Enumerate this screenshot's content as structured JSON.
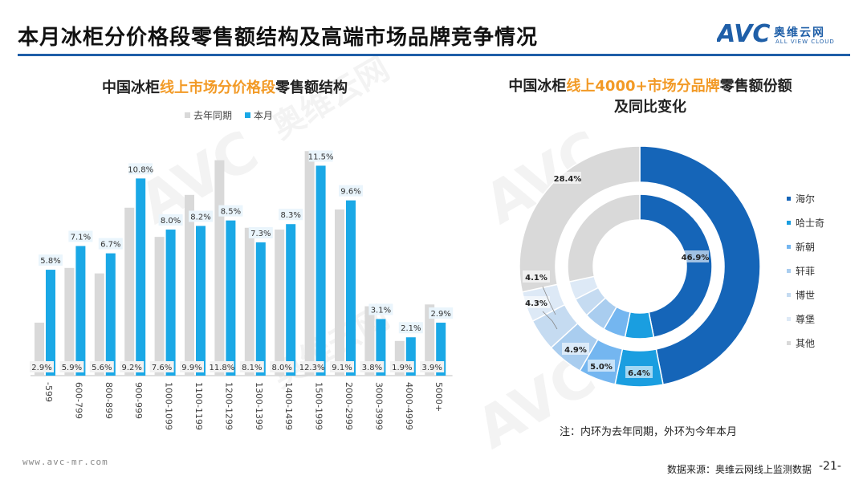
{
  "page": {
    "title": "本月冰柜分价格段零售额结构及高端市场品牌竞争情况",
    "logo_text": "奥维云网",
    "logo_sub": "ALL VIEW CLOUD",
    "site": "www.avc-mr.com",
    "source": "数据来源：奥维云网线上监测数据",
    "page_number": "-21-",
    "note": "注：内环为去年同期，外环为今年本月",
    "watermark": "AVC"
  },
  "colors": {
    "accent_blue": "#1f5fa8",
    "current_bar": "#1aa8e6",
    "prev_bar": "#d9d9d9",
    "highlight": "#f29a26"
  },
  "chart_data": [
    {
      "type": "bar",
      "title_parts": [
        "中国冰柜",
        "线上市场分价格段",
        "零售额结构"
      ],
      "categories": [
        "-599",
        "600-799",
        "800-899",
        "900-999",
        "1000-1099",
        "1100-1199",
        "1200-1299",
        "1300-1399",
        "1400-1499",
        "1500-1999",
        "2000-2999",
        "3000-3999",
        "4000-4999",
        "5000+"
      ],
      "series": [
        {
          "name": "去年同期",
          "color": "#d9d9d9",
          "values": [
            2.9,
            5.9,
            5.6,
            9.2,
            7.6,
            9.9,
            11.8,
            8.1,
            8.0,
            12.3,
            9.1,
            3.8,
            1.9,
            3.9
          ]
        },
        {
          "name": "本月",
          "color": "#1aa8e6",
          "values": [
            5.8,
            7.1,
            6.7,
            10.8,
            8.0,
            8.2,
            8.5,
            7.3,
            8.3,
            11.5,
            9.6,
            3.1,
            2.1,
            2.9
          ]
        }
      ],
      "unit": "%",
      "ylim": [
        0,
        13
      ],
      "legend": "top"
    },
    {
      "type": "pie",
      "subtype": "donut",
      "title_parts": [
        "中国冰柜",
        "线上4000+市场分品牌",
        "零售额份额",
        "及同比变化"
      ],
      "categories": [
        "海尔",
        "哈士奇",
        "新朝",
        "轩菲",
        "博世",
        "尊堡",
        "其他"
      ],
      "colors": [
        "#1565b8",
        "#1a9ee0",
        "#74b6f0",
        "#a9cdef",
        "#c5dbf1",
        "#dde9f6",
        "#d9d9d9"
      ],
      "outer": {
        "label": "今年本月",
        "values": [
          46.9,
          6.4,
          5.0,
          4.9,
          4.3,
          4.1,
          28.4
        ]
      },
      "inner": {
        "label": "去年同期"
      },
      "legend": "right"
    }
  ]
}
